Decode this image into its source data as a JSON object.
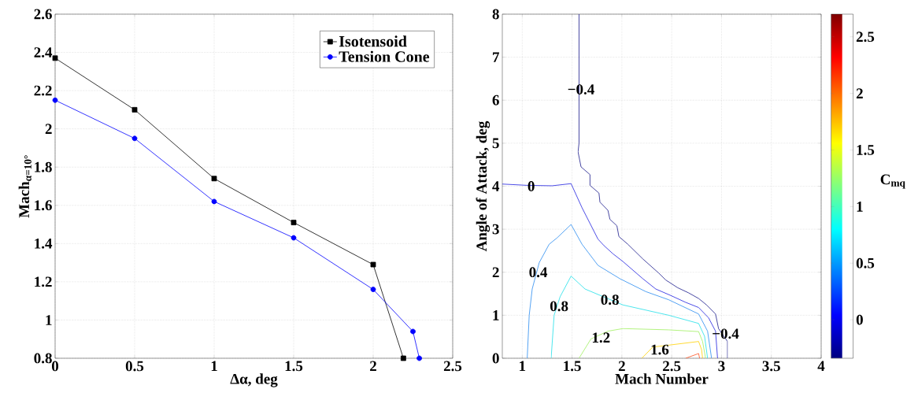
{
  "chart_data": [
    {
      "type": "line",
      "xlabel": "Δα, deg",
      "ylabel": "Mach$_{α=10°}$",
      "xlim": [
        0,
        2.5
      ],
      "ylim": [
        0.8,
        2.6
      ],
      "xticks": [
        0,
        0.5,
        1,
        1.5,
        2,
        2.5
      ],
      "yticks": [
        0.8,
        1,
        1.2,
        1.4,
        1.6,
        1.8,
        2,
        2.2,
        2.4,
        2.6
      ],
      "grid": true,
      "legend": "top right",
      "series": [
        {
          "name": "Isotensoid",
          "color": "#000000",
          "marker": "square",
          "x": [
            0,
            0.5,
            1,
            1.5,
            2,
            2.19
          ],
          "values": [
            2.37,
            2.1,
            1.74,
            1.51,
            1.29,
            0.8
          ]
        },
        {
          "name": "Tension Cone",
          "color": "#0000ff",
          "marker": "circle",
          "x": [
            0,
            0.5,
            1,
            1.5,
            2,
            2.25,
            2.29
          ],
          "values": [
            2.15,
            1.95,
            1.62,
            1.43,
            1.16,
            0.94,
            0.8
          ]
        }
      ]
    },
    {
      "type": "line",
      "xlabel": "Mach Number",
      "ylabel": "Angle of Attack, deg",
      "clabel": "C$_{mq}$",
      "xlim": [
        0.8,
        4
      ],
      "ylim": [
        0,
        8
      ],
      "xticks": [
        1,
        1.5,
        2,
        2.5,
        3,
        3.5,
        4
      ],
      "yticks": [
        0,
        1,
        2,
        3,
        4,
        5,
        6,
        7,
        8
      ],
      "grid": true,
      "clim": [
        -0.34,
        2.7
      ],
      "cticks": [
        0,
        0.5,
        1,
        1.5,
        2,
        2.5
      ],
      "series": [
        {
          "color": "#1a1a8c",
          "x": [
            1.57,
            1.57,
            1.56,
            1.59,
            1.68,
            1.68,
            1.77,
            1.78,
            1.86,
            1.88,
            1.95,
            1.97,
            2.06,
            2.21,
            2.37,
            2.44,
            2.56,
            2.67,
            2.77,
            2.85,
            2.94,
            2.97,
            3.06,
            3.06
          ],
          "values": [
            8,
            5.0,
            4.8,
            4.45,
            4.27,
            4.02,
            3.84,
            3.63,
            3.44,
            3.23,
            3.08,
            2.83,
            2.65,
            2.31,
            1.98,
            1.82,
            1.64,
            1.52,
            1.39,
            1.24,
            1.03,
            0.69,
            0.39,
            0
          ]
        },
        {
          "color": "#2020e0",
          "x": [
            0.8,
            1.05,
            1.3,
            1.49,
            1.6,
            1.76,
            1.82,
            1.91,
            2.01,
            2.21,
            2.34,
            2.49,
            2.64,
            2.77,
            2.87,
            2.94,
            2.96
          ],
          "values": [
            4.05,
            4.02,
            4.01,
            4.06,
            3.5,
            2.77,
            2.62,
            2.43,
            2.25,
            1.85,
            1.61,
            1.46,
            1.3,
            1.18,
            0.94,
            0.63,
            0
          ]
        },
        {
          "color": "#2a8cf0",
          "x": [
            1.05,
            1.07,
            1.1,
            1.17,
            1.27,
            1.35,
            1.49,
            1.6,
            1.76,
            1.98,
            2.24,
            2.47,
            2.77,
            2.86,
            2.9
          ],
          "values": [
            0,
            1.0,
            1.61,
            2.22,
            2.65,
            2.8,
            3.11,
            2.65,
            2.16,
            1.85,
            1.55,
            1.36,
            1.03,
            0.63,
            0
          ]
        },
        {
          "color": "#20e0e8",
          "x": [
            1.29,
            1.32,
            1.38,
            1.49,
            1.63,
            2.01,
            2.47,
            2.77,
            2.83,
            2.86
          ],
          "values": [
            0,
            1.0,
            1.43,
            1.91,
            1.61,
            1.24,
            1.0,
            0.81,
            0.51,
            0
          ]
        },
        {
          "color": "#a0f060",
          "x": [
            1.57,
            1.69,
            1.86,
            2.01,
            2.47,
            2.77,
            2.81,
            2.84
          ],
          "values": [
            0,
            0.45,
            0.63,
            0.69,
            0.66,
            0.62,
            0.39,
            0
          ]
        },
        {
          "color": "#ffd000",
          "x": [
            2.2,
            2.31,
            2.77,
            2.8,
            2.81
          ],
          "values": [
            0,
            0.26,
            0.39,
            0.2,
            0
          ]
        },
        {
          "color": "#ff5020",
          "x": [
            2.64,
            2.77,
            2.78
          ],
          "values": [
            0,
            0.11,
            0
          ]
        }
      ],
      "annotations": [
        {
          "text": "−0.4",
          "x": 1.59,
          "y": 6.25
        },
        {
          "text": "0",
          "x": 1.09,
          "y": 4.0
        },
        {
          "text": "0.4",
          "x": 1.16,
          "y": 2.0
        },
        {
          "text": "0.8",
          "x": 1.37,
          "y": 1.21
        },
        {
          "text": "0.8",
          "x": 1.88,
          "y": 1.36
        },
        {
          "text": "1.2",
          "x": 1.79,
          "y": 0.48
        },
        {
          "text": "1.6",
          "x": 2.38,
          "y": 0.2
        },
        {
          "text": "−0.4",
          "x": 3.04,
          "y": 0.57
        }
      ]
    }
  ]
}
